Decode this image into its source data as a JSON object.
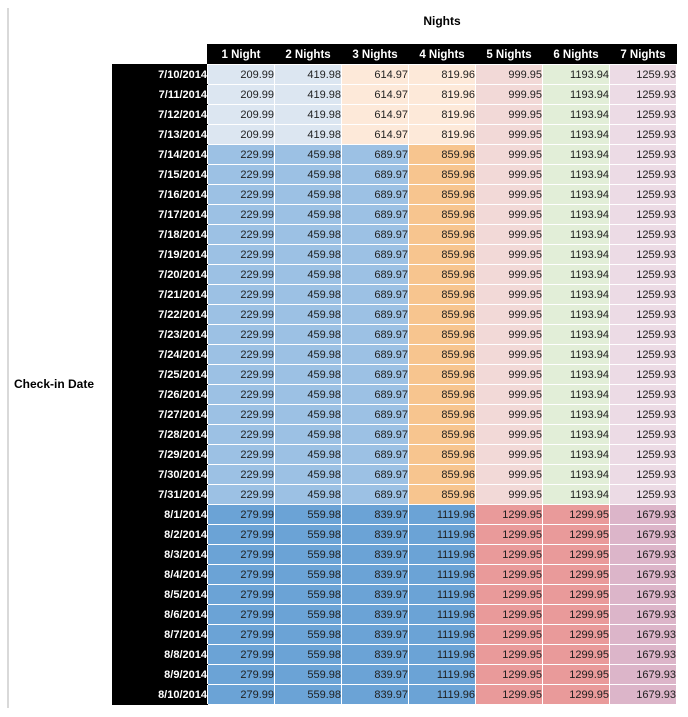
{
  "title": "Nights",
  "left_axis_label": "Check-in Date",
  "colors": {
    "header_bg": "#000000",
    "header_text": "#ffffff",
    "band_early": [
      "#dce6f1",
      "#dce6f1",
      "#fde9d9",
      "#fde9d9",
      "#f2d9d7",
      "#e2eed8",
      "#ecdbe5"
    ],
    "band_mid": [
      "#9cc1e4",
      "#9cc1e4",
      "#9cc1e4",
      "#f7c58f",
      "#f2d9d7",
      "#e2eed8",
      "#ecdbe5"
    ],
    "band_late": [
      "#6ba3d6",
      "#6ba3d6",
      "#6ba3d6",
      "#6ba3d6",
      "#e99a9a",
      "#e99a9a",
      "#dcb5c9"
    ]
  },
  "chart_data": {
    "type": "table",
    "title": "Nights",
    "row_axis_label": "Check-in Date",
    "columns": [
      "1 Night",
      "2 Nights",
      "3 Nights",
      "4 Nights",
      "5 Nights",
      "6 Nights",
      "7 Nights"
    ],
    "rows": [
      {
        "date": "7/10/2014",
        "band": "early",
        "values": [
          209.99,
          419.98,
          614.97,
          819.96,
          999.95,
          1193.94,
          1259.93
        ]
      },
      {
        "date": "7/11/2014",
        "band": "early",
        "values": [
          209.99,
          419.98,
          614.97,
          819.96,
          999.95,
          1193.94,
          1259.93
        ]
      },
      {
        "date": "7/12/2014",
        "band": "early",
        "values": [
          209.99,
          419.98,
          614.97,
          819.96,
          999.95,
          1193.94,
          1259.93
        ]
      },
      {
        "date": "7/13/2014",
        "band": "early",
        "values": [
          209.99,
          419.98,
          614.97,
          819.96,
          999.95,
          1193.94,
          1259.93
        ]
      },
      {
        "date": "7/14/2014",
        "band": "mid",
        "values": [
          229.99,
          459.98,
          689.97,
          859.96,
          999.95,
          1193.94,
          1259.93
        ]
      },
      {
        "date": "7/15/2014",
        "band": "mid",
        "values": [
          229.99,
          459.98,
          689.97,
          859.96,
          999.95,
          1193.94,
          1259.93
        ]
      },
      {
        "date": "7/16/2014",
        "band": "mid",
        "values": [
          229.99,
          459.98,
          689.97,
          859.96,
          999.95,
          1193.94,
          1259.93
        ]
      },
      {
        "date": "7/17/2014",
        "band": "mid",
        "values": [
          229.99,
          459.98,
          689.97,
          859.96,
          999.95,
          1193.94,
          1259.93
        ]
      },
      {
        "date": "7/18/2014",
        "band": "mid",
        "values": [
          229.99,
          459.98,
          689.97,
          859.96,
          999.95,
          1193.94,
          1259.93
        ]
      },
      {
        "date": "7/19/2014",
        "band": "mid",
        "values": [
          229.99,
          459.98,
          689.97,
          859.96,
          999.95,
          1193.94,
          1259.93
        ]
      },
      {
        "date": "7/20/2014",
        "band": "mid",
        "values": [
          229.99,
          459.98,
          689.97,
          859.96,
          999.95,
          1193.94,
          1259.93
        ]
      },
      {
        "date": "7/21/2014",
        "band": "mid",
        "values": [
          229.99,
          459.98,
          689.97,
          859.96,
          999.95,
          1193.94,
          1259.93
        ]
      },
      {
        "date": "7/22/2014",
        "band": "mid",
        "values": [
          229.99,
          459.98,
          689.97,
          859.96,
          999.95,
          1193.94,
          1259.93
        ]
      },
      {
        "date": "7/23/2014",
        "band": "mid",
        "values": [
          229.99,
          459.98,
          689.97,
          859.96,
          999.95,
          1193.94,
          1259.93
        ]
      },
      {
        "date": "7/24/2014",
        "band": "mid",
        "values": [
          229.99,
          459.98,
          689.97,
          859.96,
          999.95,
          1193.94,
          1259.93
        ]
      },
      {
        "date": "7/25/2014",
        "band": "mid",
        "values": [
          229.99,
          459.98,
          689.97,
          859.96,
          999.95,
          1193.94,
          1259.93
        ]
      },
      {
        "date": "7/26/2014",
        "band": "mid",
        "values": [
          229.99,
          459.98,
          689.97,
          859.96,
          999.95,
          1193.94,
          1259.93
        ]
      },
      {
        "date": "7/27/2014",
        "band": "mid",
        "values": [
          229.99,
          459.98,
          689.97,
          859.96,
          999.95,
          1193.94,
          1259.93
        ]
      },
      {
        "date": "7/28/2014",
        "band": "mid",
        "values": [
          229.99,
          459.98,
          689.97,
          859.96,
          999.95,
          1193.94,
          1259.93
        ]
      },
      {
        "date": "7/29/2014",
        "band": "mid",
        "values": [
          229.99,
          459.98,
          689.97,
          859.96,
          999.95,
          1193.94,
          1259.93
        ]
      },
      {
        "date": "7/30/2014",
        "band": "mid",
        "values": [
          229.99,
          459.98,
          689.97,
          859.96,
          999.95,
          1193.94,
          1259.93
        ]
      },
      {
        "date": "7/31/2014",
        "band": "mid",
        "values": [
          229.99,
          459.98,
          689.97,
          859.96,
          999.95,
          1193.94,
          1259.93
        ]
      },
      {
        "date": "8/1/2014",
        "band": "late",
        "values": [
          279.99,
          559.98,
          839.97,
          1119.96,
          1299.95,
          1299.95,
          1679.93
        ]
      },
      {
        "date": "8/2/2014",
        "band": "late",
        "values": [
          279.99,
          559.98,
          839.97,
          1119.96,
          1299.95,
          1299.95,
          1679.93
        ]
      },
      {
        "date": "8/3/2014",
        "band": "late",
        "values": [
          279.99,
          559.98,
          839.97,
          1119.96,
          1299.95,
          1299.95,
          1679.93
        ]
      },
      {
        "date": "8/4/2014",
        "band": "late",
        "values": [
          279.99,
          559.98,
          839.97,
          1119.96,
          1299.95,
          1299.95,
          1679.93
        ]
      },
      {
        "date": "8/5/2014",
        "band": "late",
        "values": [
          279.99,
          559.98,
          839.97,
          1119.96,
          1299.95,
          1299.95,
          1679.93
        ]
      },
      {
        "date": "8/6/2014",
        "band": "late",
        "values": [
          279.99,
          559.98,
          839.97,
          1119.96,
          1299.95,
          1299.95,
          1679.93
        ]
      },
      {
        "date": "8/7/2014",
        "band": "late",
        "values": [
          279.99,
          559.98,
          839.97,
          1119.96,
          1299.95,
          1299.95,
          1679.93
        ]
      },
      {
        "date": "8/8/2014",
        "band": "late",
        "values": [
          279.99,
          559.98,
          839.97,
          1119.96,
          1299.95,
          1299.95,
          1679.93
        ]
      },
      {
        "date": "8/9/2014",
        "band": "late",
        "values": [
          279.99,
          559.98,
          839.97,
          1119.96,
          1299.95,
          1299.95,
          1679.93
        ]
      },
      {
        "date": "8/10/2014",
        "band": "late",
        "values": [
          279.99,
          559.98,
          839.97,
          1119.96,
          1299.95,
          1299.95,
          1679.93
        ]
      }
    ]
  }
}
